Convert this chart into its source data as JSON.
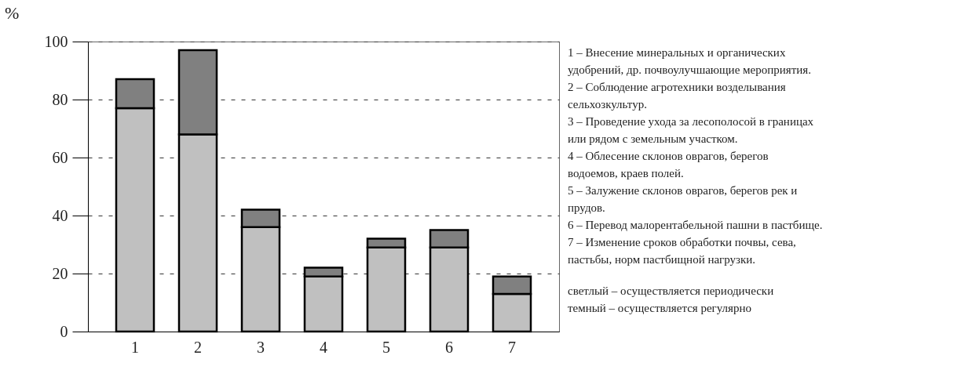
{
  "chart_data": {
    "type": "bar",
    "stacked": true,
    "ylabel": "%",
    "categories": [
      "1",
      "2",
      "3",
      "4",
      "5",
      "6",
      "7"
    ],
    "series": [
      {
        "color": "#c0c0c0",
        "values": [
          77,
          68,
          36,
          19,
          29,
          29,
          13
        ]
      },
      {
        "color": "#808080",
        "values": [
          10,
          29,
          6,
          3,
          3,
          6,
          6
        ]
      }
    ],
    "ylim": [
      0,
      100
    ],
    "yticks": [
      0,
      20,
      40,
      60,
      80,
      100
    ],
    "grid": "y",
    "annotations": [
      "1 – Внесение минеральных и органических удобрений, др. почвоулучшающие мероприятия.",
      "2 – Соблюдение агротехники возделывания сельхозкультур.",
      "3 – Проведение ухода за лесополосой в границах или рядом с земельным участком.",
      "4 – Облесение склонов оврагов, берегов водоемов, краев полей.",
      "5 – Залужение склонов оврагов, берегов рек и прудов.",
      "6 – Перевод малорентабельной пашни в пастбище.",
      "7 – Изменение сроков обработки почвы, сева, пастьбы, норм пастбищной нагрузки.",
      "светлый – осуществляется периодически",
      "темный – осуществляется регулярно"
    ]
  }
}
